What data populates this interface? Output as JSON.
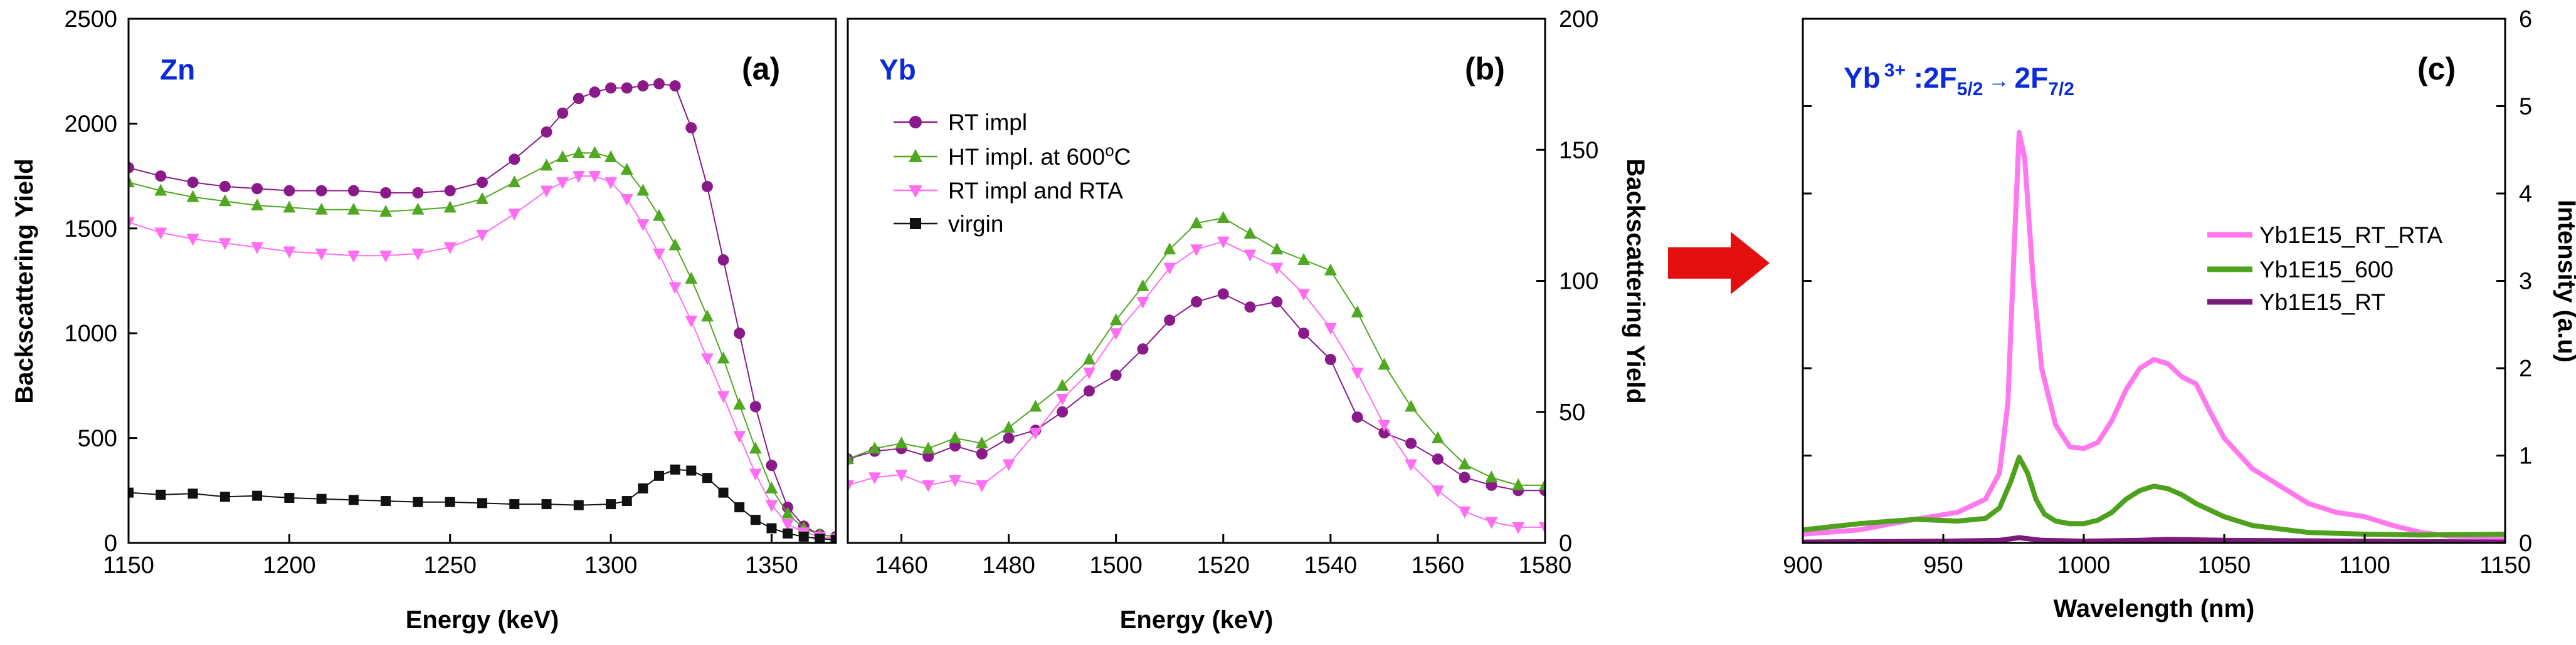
{
  "colors": {
    "rt_impl": "#8a1a8a",
    "ht_impl": "#4fa81f",
    "rt_rta": "#ff6ef2",
    "virgin": "#111111",
    "element_label": "#0b2ad8",
    "arrow": "#e41010",
    "pl_rta": "#ff78ee",
    "pl_600": "#4ea11c",
    "pl_rt": "#7a1a7a"
  },
  "panels": {
    "a": {
      "tag": "(a)",
      "element": "Zn",
      "ylabel": "Backscattering Yield",
      "xlabel": "Energy (keV)"
    },
    "b": {
      "tag": "(b)",
      "element": "Yb",
      "ylabel": "Backscattering Yield",
      "xlabel": "Energy (keV)"
    },
    "c": {
      "tag": "(c)",
      "ylabel": "Intensity (a.u)",
      "xlabel": "Wavelength (nm)",
      "transition": {
        "ion": "Yb",
        "charge": "3+",
        "sep": " :2F",
        "sub1": "5/2",
        "arrow": "→",
        "term2": "2F",
        "sub2": "7/2"
      }
    }
  },
  "legend_ab": {
    "rt_impl": "RT impl",
    "ht_impl": "HT impl. at 600",
    "ht_sup": "o",
    "ht_unit": "C",
    "rt_rta": "RT impl and RTA",
    "virgin": "virgin"
  },
  "legend_c": {
    "rta": "Yb1E15_RT_RTA",
    "s600": "Yb1E15_600",
    "rt": "Yb1E15_RT"
  },
  "chart_data": [
    {
      "panel": "a",
      "type": "scatter",
      "title": "Zn",
      "xlabel": "Energy (keV)",
      "ylabel": "Backscattering Yield",
      "xlim": [
        1150,
        1370
      ],
      "ylim": [
        0,
        2500
      ],
      "xticks": [
        1150,
        1200,
        1250,
        1300,
        1350
      ],
      "yticks": [
        0,
        500,
        1000,
        1500,
        2000,
        2500
      ],
      "series": [
        {
          "name": "RT impl",
          "marker": "circle",
          "x": [
            1150,
            1160,
            1170,
            1180,
            1190,
            1200,
            1210,
            1220,
            1230,
            1240,
            1250,
            1260,
            1270,
            1280,
            1285,
            1290,
            1295,
            1300,
            1305,
            1310,
            1315,
            1320,
            1325,
            1330,
            1335,
            1340,
            1345,
            1350,
            1355,
            1360,
            1365,
            1370
          ],
          "y": [
            1790,
            1750,
            1720,
            1700,
            1690,
            1680,
            1680,
            1680,
            1670,
            1670,
            1680,
            1720,
            1830,
            1960,
            2050,
            2120,
            2150,
            2170,
            2170,
            2180,
            2190,
            2180,
            1980,
            1700,
            1350,
            1000,
            650,
            370,
            170,
            80,
            40,
            30
          ]
        },
        {
          "name": "HT impl. at 600°C",
          "marker": "triangle-up",
          "x": [
            1150,
            1160,
            1170,
            1180,
            1190,
            1200,
            1210,
            1220,
            1230,
            1240,
            1250,
            1260,
            1270,
            1280,
            1285,
            1290,
            1295,
            1300,
            1305,
            1310,
            1315,
            1320,
            1325,
            1330,
            1335,
            1340,
            1345,
            1350,
            1355,
            1360,
            1365,
            1370
          ],
          "y": [
            1720,
            1680,
            1650,
            1630,
            1610,
            1600,
            1590,
            1590,
            1580,
            1590,
            1600,
            1640,
            1720,
            1800,
            1840,
            1860,
            1860,
            1840,
            1780,
            1680,
            1560,
            1420,
            1260,
            1080,
            880,
            660,
            450,
            260,
            140,
            70,
            40,
            30
          ]
        },
        {
          "name": "RT impl and RTA",
          "marker": "triangle-down",
          "x": [
            1150,
            1160,
            1170,
            1180,
            1190,
            1200,
            1210,
            1220,
            1230,
            1240,
            1250,
            1260,
            1270,
            1280,
            1285,
            1290,
            1295,
            1300,
            1305,
            1310,
            1315,
            1320,
            1325,
            1330,
            1335,
            1340,
            1345,
            1350,
            1355,
            1360,
            1365,
            1370
          ],
          "y": [
            1530,
            1480,
            1450,
            1430,
            1410,
            1390,
            1380,
            1370,
            1370,
            1380,
            1410,
            1470,
            1570,
            1680,
            1720,
            1750,
            1750,
            1720,
            1640,
            1520,
            1380,
            1220,
            1060,
            880,
            700,
            510,
            330,
            180,
            90,
            50,
            30,
            20
          ]
        },
        {
          "name": "virgin",
          "marker": "square",
          "x": [
            1150,
            1160,
            1170,
            1180,
            1190,
            1200,
            1210,
            1220,
            1230,
            1240,
            1250,
            1260,
            1270,
            1280,
            1290,
            1300,
            1305,
            1310,
            1315,
            1320,
            1325,
            1330,
            1335,
            1340,
            1345,
            1350,
            1355,
            1360,
            1365,
            1370
          ],
          "y": [
            240,
            230,
            235,
            220,
            225,
            215,
            210,
            205,
            200,
            195,
            195,
            190,
            185,
            185,
            180,
            185,
            200,
            260,
            320,
            350,
            345,
            310,
            240,
            170,
            110,
            70,
            45,
            30,
            20,
            15
          ]
        }
      ]
    },
    {
      "panel": "b",
      "type": "scatter",
      "title": "Yb",
      "xlabel": "Energy (keV)",
      "ylabel": "Backscattering Yield",
      "xlim": [
        1450,
        1580
      ],
      "ylim": [
        0,
        200
      ],
      "xticks": [
        1460,
        1480,
        1500,
        1520,
        1540,
        1560,
        1580
      ],
      "yticks": [
        0,
        50,
        100,
        150,
        200
      ],
      "series": [
        {
          "name": "RT impl",
          "marker": "circle",
          "x": [
            1450,
            1455,
            1460,
            1465,
            1470,
            1475,
            1480,
            1485,
            1490,
            1495,
            1500,
            1505,
            1510,
            1515,
            1520,
            1525,
            1530,
            1535,
            1540,
            1545,
            1550,
            1555,
            1560,
            1565,
            1570,
            1575,
            1580
          ],
          "y": [
            32,
            35,
            36,
            33,
            37,
            34,
            40,
            43,
            50,
            58,
            64,
            74,
            85,
            92,
            95,
            90,
            92,
            80,
            70,
            48,
            42,
            38,
            32,
            25,
            22,
            20,
            20
          ]
        },
        {
          "name": "HT impl. at 600°C",
          "marker": "triangle-up",
          "x": [
            1450,
            1455,
            1460,
            1465,
            1470,
            1475,
            1480,
            1485,
            1490,
            1495,
            1500,
            1505,
            1510,
            1515,
            1520,
            1525,
            1530,
            1535,
            1540,
            1545,
            1550,
            1555,
            1560,
            1565,
            1570,
            1575,
            1580
          ],
          "y": [
            32,
            36,
            38,
            36,
            40,
            38,
            44,
            52,
            60,
            70,
            85,
            98,
            112,
            122,
            124,
            118,
            112,
            108,
            104,
            88,
            68,
            52,
            40,
            30,
            25,
            22,
            22
          ]
        },
        {
          "name": "RT impl and RTA",
          "marker": "triangle-down",
          "x": [
            1450,
            1455,
            1460,
            1465,
            1470,
            1475,
            1480,
            1485,
            1490,
            1495,
            1500,
            1505,
            1510,
            1515,
            1520,
            1525,
            1530,
            1535,
            1540,
            1545,
            1550,
            1555,
            1560,
            1565,
            1570,
            1575,
            1580
          ],
          "y": [
            22,
            25,
            26,
            22,
            24,
            22,
            30,
            42,
            55,
            65,
            80,
            92,
            105,
            112,
            115,
            110,
            105,
            95,
            82,
            65,
            45,
            30,
            20,
            12,
            8,
            6,
            6
          ]
        }
      ]
    },
    {
      "panel": "c",
      "type": "line",
      "title": "Yb 3+ :2F5/2 → 2F7/2",
      "xlabel": "Wavelength (nm)",
      "ylabel": "Intensity (a.u)",
      "xlim": [
        900,
        1150
      ],
      "ylim": [
        0,
        6
      ],
      "xticks": [
        900,
        950,
        1000,
        1050,
        1100,
        1150
      ],
      "yticks": [
        0,
        1,
        2,
        3,
        4,
        5,
        6
      ],
      "series": [
        {
          "name": "Yb1E15_RT_RTA",
          "x": [
            900,
            920,
            940,
            955,
            965,
            970,
            973,
            975,
            977,
            979,
            982,
            985,
            990,
            995,
            1000,
            1005,
            1010,
            1015,
            1020,
            1025,
            1030,
            1035,
            1040,
            1045,
            1050,
            1060,
            1070,
            1080,
            1090,
            1100,
            1110,
            1120,
            1130,
            1150
          ],
          "y": [
            0.1,
            0.15,
            0.27,
            0.35,
            0.5,
            0.8,
            1.6,
            3.2,
            4.7,
            4.4,
            3.0,
            2.0,
            1.35,
            1.1,
            1.08,
            1.15,
            1.4,
            1.75,
            2.0,
            2.1,
            2.05,
            1.9,
            1.82,
            1.5,
            1.2,
            0.85,
            0.65,
            0.45,
            0.35,
            0.3,
            0.2,
            0.12,
            0.08,
            0.06
          ]
        },
        {
          "name": "Yb1E15_600",
          "x": [
            900,
            920,
            940,
            955,
            965,
            970,
            974,
            977,
            980,
            983,
            986,
            990,
            995,
            1000,
            1005,
            1010,
            1015,
            1020,
            1025,
            1030,
            1035,
            1040,
            1050,
            1060,
            1080,
            1100,
            1120,
            1150
          ],
          "y": [
            0.15,
            0.22,
            0.27,
            0.25,
            0.28,
            0.4,
            0.7,
            0.98,
            0.8,
            0.5,
            0.33,
            0.25,
            0.22,
            0.22,
            0.26,
            0.35,
            0.5,
            0.6,
            0.65,
            0.62,
            0.55,
            0.45,
            0.3,
            0.2,
            0.12,
            0.1,
            0.09,
            0.1
          ]
        },
        {
          "name": "Yb1E15_RT",
          "x": [
            900,
            950,
            970,
            977,
            985,
            1000,
            1020,
            1030,
            1050,
            1100,
            1150
          ],
          "y": [
            0.01,
            0.02,
            0.03,
            0.06,
            0.03,
            0.02,
            0.03,
            0.04,
            0.03,
            0.02,
            0.01
          ]
        }
      ]
    }
  ]
}
